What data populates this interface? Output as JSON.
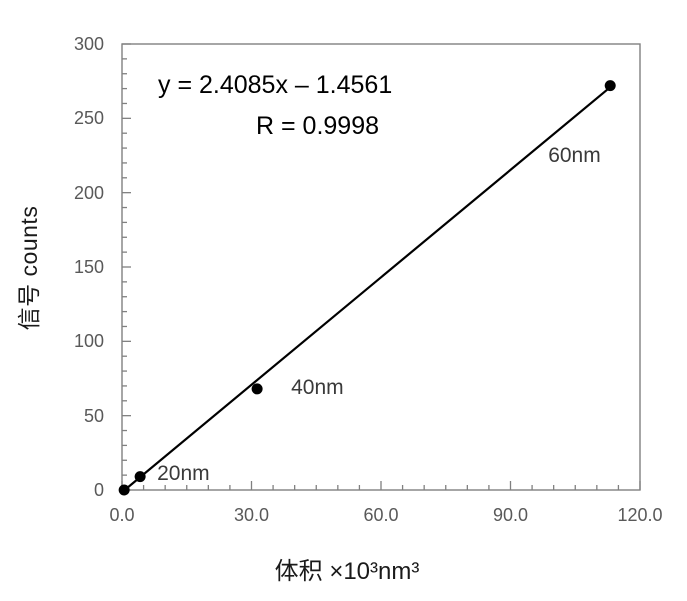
{
  "figure": {
    "background": "#ffffff"
  },
  "chart_data": {
    "type": "scatter",
    "title": "",
    "xlabel": "体积 ×10³nm³",
    "ylabel": "信号 counts",
    "x": [
      0.5,
      4.2,
      31.3,
      113.1
    ],
    "y": [
      0,
      9,
      68,
      272
    ],
    "point_labels": [
      "",
      "20nm",
      "40nm",
      "60nm"
    ],
    "xlim": [
      0,
      120
    ],
    "ylim": [
      0,
      300
    ],
    "x_major_ticks": [
      0,
      30,
      60,
      90,
      120
    ],
    "x_tick_labels": [
      "0.0",
      "30.0",
      "60.0",
      "90.0",
      "120.0"
    ],
    "x_minor_step": 5,
    "y_major_ticks": [
      0,
      50,
      100,
      150,
      200,
      250,
      300
    ],
    "y_tick_labels": [
      "0",
      "50",
      "100",
      "150",
      "200",
      "250",
      "300"
    ],
    "y_minor_step": 10,
    "grid": false,
    "legend": "none",
    "trendline": {
      "slope": 2.4085,
      "intercept": -1.4561,
      "equation": "y = 2.4085x – 1.4561",
      "r_label": "R = 0.9998"
    },
    "colors": {
      "marker": "#000000",
      "line": "#000000",
      "axis": "#808080",
      "tick_label": "#595959",
      "axis_title": "#1a1a1a",
      "annotation": "#000000",
      "point_label": "#3a3a3a"
    }
  }
}
